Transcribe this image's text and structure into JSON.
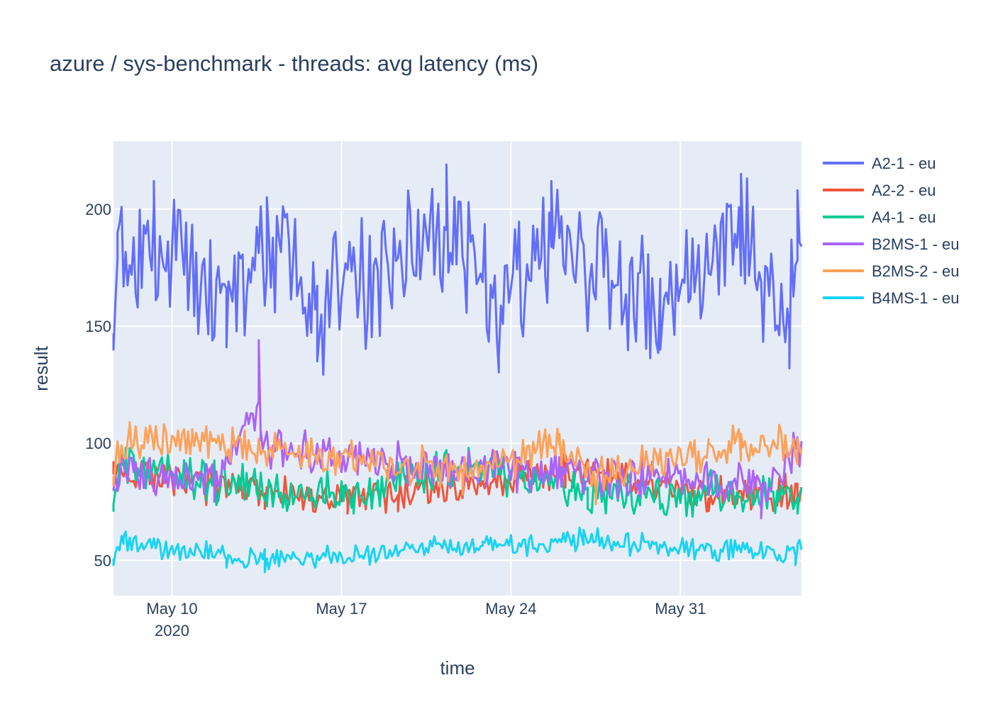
{
  "chart_data": {
    "type": "line",
    "title": "azure / sys-benchmark - threads: avg latency (ms)",
    "xlabel": "time",
    "ylabel": "result",
    "x_range": [
      "2020-05-07 14:00",
      "2020-06-05 00:00"
    ],
    "ylim": [
      35,
      229
    ],
    "y_ticks": [
      50,
      100,
      150,
      200
    ],
    "x_ticks": [
      {
        "date": "2020-05-10",
        "label": "May 10",
        "sublabel": "2020"
      },
      {
        "date": "2020-05-17",
        "label": "May 17",
        "sublabel": ""
      },
      {
        "date": "2020-05-24",
        "label": "May 24",
        "sublabel": ""
      },
      {
        "date": "2020-05-31",
        "label": "May 31",
        "sublabel": ""
      }
    ],
    "grid": true,
    "legend_position": "top-right",
    "points_per_day": 12,
    "series": [
      {
        "name": "A2-1 - eu",
        "color": "#636efa",
        "base": 172,
        "amp": 34,
        "anchors": [
          [
            "2020-05-07 14:00",
            140
          ],
          [
            "2020-05-07 18:00",
            190
          ],
          [
            "2020-05-09 06:00",
            212
          ],
          [
            "2020-05-12 06:00",
            141
          ],
          [
            "2020-05-13 22:00",
            205
          ],
          [
            "2020-05-16 00:00",
            135
          ],
          [
            "2020-05-21 08:00",
            219
          ],
          [
            "2020-05-23 12:00",
            137
          ],
          [
            "2020-05-25 16:00",
            212
          ],
          [
            "2020-05-30 04:00",
            140
          ],
          [
            "2020-06-02 12:00",
            215
          ],
          [
            "2020-06-04 12:00",
            132
          ],
          [
            "2020-06-04 20:00",
            208
          ]
        ]
      },
      {
        "name": "A2-2 - eu",
        "color": "#ef553b",
        "base": 84,
        "amp": 9,
        "anchors": [
          [
            "2020-05-07 14:00",
            92
          ],
          [
            "2020-05-13 20:00",
            72
          ],
          [
            "2020-05-17 06:00",
            70
          ],
          [
            "2020-05-19 08:00",
            71
          ],
          [
            "2020-05-26 06:00",
            95
          ],
          [
            "2020-06-01 04:00",
            71
          ],
          [
            "2020-06-04 20:00",
            74
          ]
        ]
      },
      {
        "name": "A4-1 - eu",
        "color": "#00cc96",
        "base": 84,
        "amp": 11,
        "anchors": [
          [
            "2020-05-07 14:00",
            74
          ],
          [
            "2020-05-08 02:00",
            98
          ],
          [
            "2020-05-13 22:00",
            73
          ],
          [
            "2020-05-17 12:00",
            70
          ],
          [
            "2020-05-22 06:00",
            98
          ],
          [
            "2020-05-27 04:00",
            72
          ],
          [
            "2020-06-04 20:00",
            70
          ]
        ]
      },
      {
        "name": "B2MS-1 - eu",
        "color": "#ab63fa",
        "base": 93,
        "amp": 11,
        "anchors": [
          [
            "2020-05-07 14:00",
            80
          ],
          [
            "2020-05-11 18:00",
            75
          ],
          [
            "2020-05-13 14:00",
            144
          ],
          [
            "2020-05-13 16:00",
            105
          ],
          [
            "2020-05-21 08:00",
            86
          ],
          [
            "2020-06-03 08:00",
            68
          ],
          [
            "2020-06-04 20:00",
            100
          ]
        ]
      },
      {
        "name": "B2MS-2 - eu",
        "color": "#ffa15a",
        "base": 96,
        "amp": 10,
        "anchors": [
          [
            "2020-05-07 14:00",
            82
          ],
          [
            "2020-05-08 06:00",
            109
          ],
          [
            "2020-05-10 20:00",
            106
          ],
          [
            "2020-05-22 00:00",
            78
          ],
          [
            "2020-05-26 00:00",
            104
          ],
          [
            "2020-05-27 12:00",
            74
          ],
          [
            "2020-06-01 04:00",
            100
          ],
          [
            "2020-06-02 12:00",
            104
          ],
          [
            "2020-06-04 20:00",
            102
          ]
        ]
      },
      {
        "name": "B4MS-1 - eu",
        "color": "#19d3f3",
        "base": 55,
        "amp": 6,
        "anchors": [
          [
            "2020-05-07 14:00",
            48
          ],
          [
            "2020-05-08 00:00",
            60
          ],
          [
            "2020-05-12 06:00",
            47
          ],
          [
            "2020-05-13 20:00",
            45
          ],
          [
            "2020-05-22 20:00",
            58
          ],
          [
            "2020-05-27 00:00",
            63
          ],
          [
            "2020-06-04 18:00",
            48
          ],
          [
            "2020-06-04 20:00",
            57
          ]
        ]
      }
    ]
  }
}
